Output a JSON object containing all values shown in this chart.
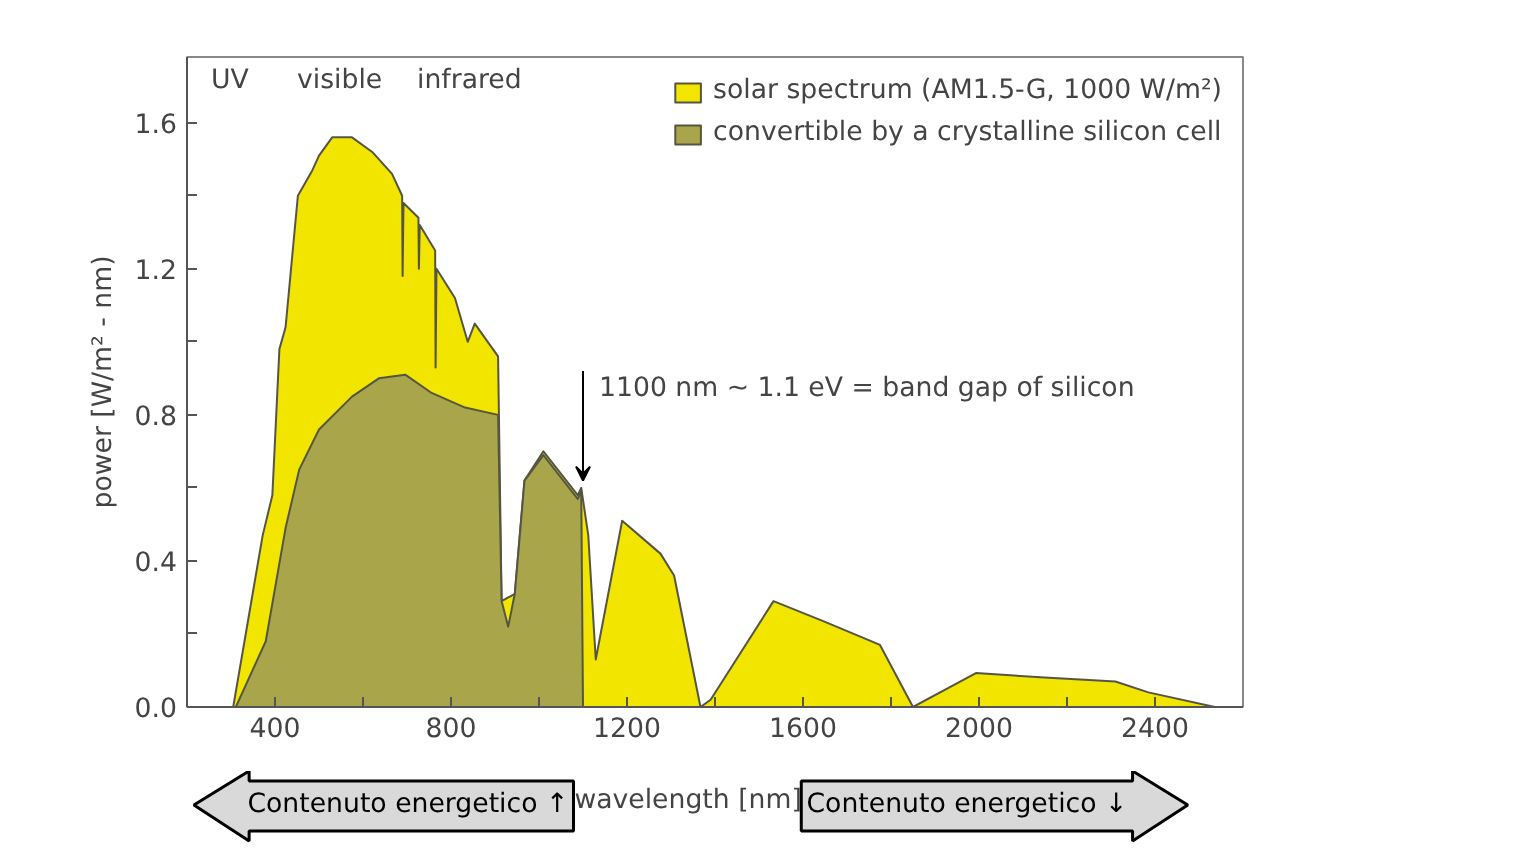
{
  "chart_data": {
    "type": "area",
    "xlabel": "wavelength [nm]",
    "ylabel": "power [W/m² - nm)",
    "xlim": [
      200,
      2600
    ],
    "ylim": [
      0,
      1.78
    ],
    "xticks": [
      400,
      {
        "value": 600,
        "label": null
      },
      800,
      {
        "value": 1000,
        "label": null
      },
      1200,
      {
        "value": 1400,
        "label": null
      },
      1600,
      {
        "value": 1800,
        "label": null
      },
      2000,
      {
        "value": 2200,
        "label": null
      },
      2400
    ],
    "yticks": [
      {
        "value": 0,
        "label": "0.0"
      },
      {
        "value": 0.2,
        "label": null
      },
      0.4,
      {
        "value": 0.6,
        "label": null
      },
      0.8,
      {
        "value": 1.0,
        "label": null
      },
      1.2,
      {
        "value": 1.4,
        "label": null
      },
      1.6
    ],
    "grid": false,
    "legend": "top right",
    "series": [
      {
        "name": "solar spectrum (AM1.5-G, 1000 W/m²)",
        "color": "#f2e600",
        "x": [
          305,
          372,
          394,
          410,
          424,
          452,
          485,
          500,
          530,
          575,
          621,
          666,
          689,
          690,
          692,
          726,
          727,
          729,
          764,
          765,
          767,
          809,
          838,
          854,
          907,
          915,
          945,
          967,
          1010,
          1088,
          1096,
          1112,
          1129,
          1189,
          1276,
          1307,
          1367,
          1390,
          1533,
          1646,
          1775,
          1850,
          1993,
          2159,
          2310,
          2385,
          2536
        ],
        "values": [
          0,
          0.47,
          0.58,
          0.98,
          1.04,
          1.4,
          1.47,
          1.51,
          1.56,
          1.56,
          1.52,
          1.46,
          1.4,
          1.18,
          1.38,
          1.34,
          1.2,
          1.32,
          1.25,
          0.93,
          1.2,
          1.12,
          1.0,
          1.05,
          0.96,
          0.29,
          0.31,
          0.62,
          0.7,
          0.58,
          0.6,
          0.47,
          0.13,
          0.51,
          0.42,
          0.36,
          0,
          0.02,
          0.29,
          0.235,
          0.17,
          0,
          0.093,
          0.08,
          0.07,
          0.04,
          0
        ]
      },
      {
        "name": "convertible by a crystalline silicon cell",
        "color": "#a9a54a",
        "x": [
          311,
          379,
          424,
          455,
          500,
          575,
          636,
          696,
          756,
          832,
          907,
          915,
          930,
          945,
          967,
          1010,
          1088,
          1096,
          1100
        ],
        "values": [
          0,
          0.18,
          0.49,
          0.65,
          0.76,
          0.85,
          0.9,
          0.91,
          0.86,
          0.82,
          0.8,
          0.29,
          0.22,
          0.31,
          0.62,
          0.69,
          0.57,
          0.59,
          0
        ]
      }
    ],
    "annotations": [
      "UV",
      "visible",
      "infrared",
      {
        "text": "1100 nm ~ 1.1 eV = band gap of silicon",
        "x": 1100,
        "y": 0.62
      },
      "Contenuto energetico ↑",
      "Contenuto energetico ↓"
    ]
  }
}
